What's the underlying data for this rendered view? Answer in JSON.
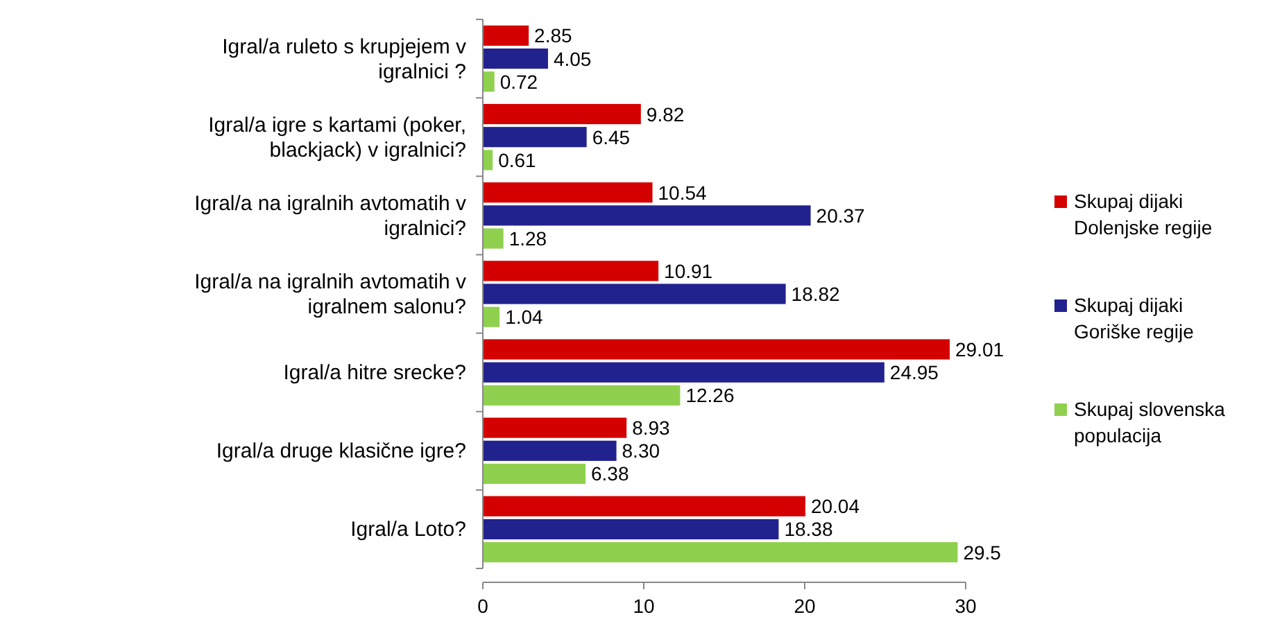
{
  "chart_data": {
    "type": "bar",
    "orientation": "horizontal",
    "categories": [
      "Igral/a ruleto s krupjejem v igralnici ?",
      "Igral/a igre s kartami (poker, blackjack) v igralnici?",
      "Igral/a na igralnih avtomatih v igralnici?",
      "Igral/a na igralnih avtomatih v igralnem salonu?",
      "Igral/a hitre srecke?",
      "Igral/a druge klasične igre?",
      "Igral/a Loto?"
    ],
    "series": [
      {
        "name": "Skupaj dijaki Dolenjske regije",
        "color": "#d40000",
        "values": [
          2.85,
          9.82,
          10.54,
          10.91,
          29.01,
          8.93,
          20.04
        ],
        "value_labels": [
          "2.85",
          "9.82",
          "10.54",
          "10.91",
          "29.01",
          "8.93",
          "20.04"
        ]
      },
      {
        "name": "Skupaj dijaki Goriške regije",
        "color": "#22228f",
        "values": [
          4.05,
          6.45,
          20.37,
          18.82,
          24.95,
          8.3,
          18.38
        ],
        "value_labels": [
          "4.05",
          "6.45",
          "20.37",
          "18.82",
          "24.95",
          "8.30",
          "18.38"
        ]
      },
      {
        "name": "Skupaj slovenska populacija",
        "color": "#8fd14f",
        "values": [
          0.72,
          0.61,
          1.28,
          1.04,
          12.26,
          6.38,
          29.5
        ],
        "value_labels": [
          "0.72",
          "0.61",
          "1.28",
          "1.04",
          "12.26",
          "6.38",
          "29.5"
        ]
      }
    ],
    "xlim": [
      0,
      30
    ],
    "xticks": [
      0,
      10,
      20,
      30
    ],
    "legend": "right",
    "grid": false
  }
}
